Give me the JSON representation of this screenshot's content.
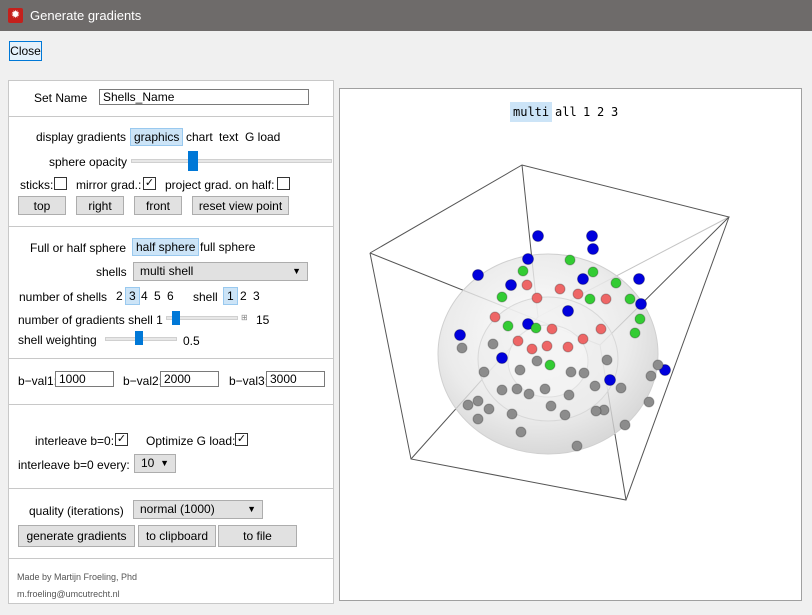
{
  "window": {
    "title": "Generate gradients"
  },
  "close_label": "Close",
  "set_name": {
    "label": "Set Name",
    "value": "Shells_Name"
  },
  "display": {
    "label": "display gradients",
    "options": [
      "graphics",
      "chart",
      "text",
      "G load"
    ],
    "selected": "graphics"
  },
  "sphere_opacity": {
    "label": "sphere opacity",
    "value_fraction": 0.3
  },
  "checks": {
    "sticks": {
      "label": "sticks:",
      "checked": false
    },
    "mirror": {
      "label": "mirror grad.:",
      "checked": true
    },
    "project": {
      "label": "project grad. on half:",
      "checked": false
    }
  },
  "view_buttons": [
    "top",
    "right",
    "front",
    "reset view point"
  ],
  "sphere_type": {
    "label": "Full or half sphere",
    "options": [
      "half sphere",
      "full sphere"
    ],
    "selected": "half sphere"
  },
  "shells": {
    "label": "shells",
    "value": "multi shell"
  },
  "num_shells": {
    "label": "number of shells",
    "options": [
      "2",
      "3",
      "4",
      "5",
      "6"
    ],
    "selected": "3"
  },
  "shell_select": {
    "label": "shell",
    "options": [
      "1",
      "2",
      "3"
    ],
    "selected": "1"
  },
  "num_gradients": {
    "label": "number of gradients shell 1",
    "value": "15",
    "value_fraction": 0.08
  },
  "shell_weighting": {
    "label": "shell weighting",
    "value": "0.5",
    "value_fraction": 0.5
  },
  "bvals": [
    {
      "label": "b−val1:",
      "value": "1000"
    },
    {
      "label": "b−val2:",
      "value": "2000"
    },
    {
      "label": "b−val3:",
      "value": "3000"
    }
  ],
  "interleave": {
    "label": "interleave b=0:",
    "checked": true
  },
  "optimize": {
    "label": "Optimize G load:",
    "checked": true
  },
  "interleave_every": {
    "label": "interleave b=0 every:",
    "value": "10"
  },
  "quality": {
    "label": "quality (iterations)",
    "value": "normal (1000)"
  },
  "actions": [
    "generate gradients",
    "to clipboard",
    "to file"
  ],
  "footer": {
    "author": "Made by Martijn Froeling, Phd",
    "email": "m.froeling@umcutrecht.nl"
  },
  "view_shell": {
    "options": [
      "multi",
      "all",
      "1",
      "2",
      "3"
    ],
    "selected": "multi"
  },
  "icons": {
    "app": "gear-icon",
    "dropdown": "chevron-down-icon",
    "check": "checkmark-icon"
  },
  "colors": {
    "shell1": "#0000dd",
    "shell2": "#33cc33",
    "shell3": "#ee6666",
    "mirror": "#8c8c8c",
    "selection": "#cce4f7",
    "titlebar": "#6e6b6a"
  }
}
